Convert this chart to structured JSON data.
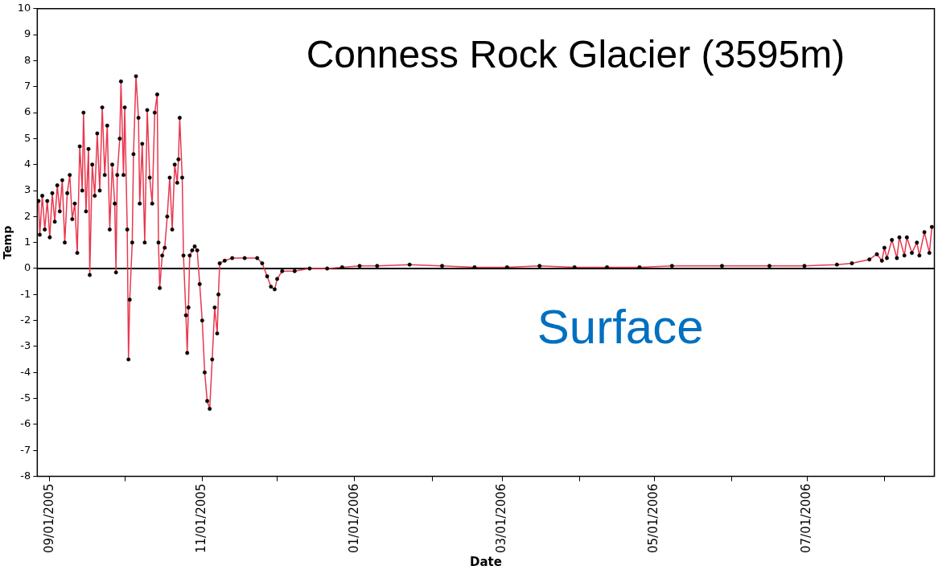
{
  "chart_data": {
    "type": "line",
    "title": "Conness Rock Glacier (3595m)",
    "xlabel": "Date",
    "ylabel": "Temp",
    "annotations": [
      "Surface"
    ],
    "x": [
      "2005-08-27T12:00",
      "2005-08-28",
      "2005-08-29",
      "2005-08-30",
      "2005-08-31",
      "2005-09-01",
      "2005-09-02",
      "2005-09-03",
      "2005-09-04",
      "2005-09-05",
      "2005-09-06",
      "2005-09-07",
      "2005-09-08",
      "2005-09-09",
      "2005-09-10",
      "2005-09-11",
      "2005-09-12",
      "2005-09-13",
      "2005-09-14",
      "2005-09-14T12:00",
      "2005-09-15T12:00",
      "2005-09-16T12:00",
      "2005-09-17",
      "2005-09-18",
      "2005-09-19",
      "2005-09-20",
      "2005-09-21",
      "2005-09-22",
      "2005-09-23",
      "2005-09-24",
      "2005-09-25",
      "2005-09-26",
      "2005-09-27",
      "2005-09-27T12:00",
      "2005-09-28",
      "2005-09-29",
      "2005-09-29T12:00",
      "2005-09-30T12:00",
      "2005-10-01",
      "2005-10-02",
      "2005-10-02T12:00",
      "2005-10-03",
      "2005-10-04",
      "2005-10-04T12:00",
      "2005-10-05T12:00",
      "2005-10-06T12:00",
      "2005-10-07",
      "2005-10-08",
      "2005-10-09",
      "2005-10-10",
      "2005-10-11",
      "2005-10-12",
      "2005-10-13",
      "2005-10-14",
      "2005-10-14T12:00",
      "2005-10-15",
      "2005-10-16",
      "2005-10-17",
      "2005-10-18",
      "2005-10-19",
      "2005-10-20",
      "2005-10-21",
      "2005-10-22",
      "2005-10-22T12:00",
      "2005-10-23",
      "2005-10-24",
      "2005-10-24T12:00",
      "2005-10-25T12:00",
      "2005-10-26",
      "2005-10-26T12:00",
      "2005-10-27",
      "2005-10-28",
      "2005-10-29",
      "2005-10-30",
      "2005-10-31",
      "2005-11-01",
      "2005-11-02",
      "2005-11-03",
      "2005-11-04",
      "2005-11-05",
      "2005-11-06",
      "2005-11-07",
      "2005-11-07T12:00",
      "2005-11-08",
      "2005-11-10",
      "2005-11-13",
      "2005-11-18",
      "2005-11-23",
      "2005-11-25",
      "2005-11-27",
      "2005-11-28T12:00",
      "2005-11-30",
      "2005-12-01",
      "2005-12-03",
      "2005-12-08",
      "2005-12-14",
      "2005-12-21",
      "2005-12-27",
      "2006-01-03",
      "2006-01-10",
      "2006-01-23",
      "2006-02-05",
      "2006-02-18",
      "2006-03-03",
      "2006-03-16",
      "2006-03-30",
      "2006-04-12",
      "2006-04-25",
      "2006-05-08",
      "2006-05-28",
      "2006-06-16",
      "2006-06-30",
      "2006-07-13",
      "2006-07-19",
      "2006-07-26",
      "2006-07-29",
      "2006-07-31",
      "2006-08-01",
      "2006-08-02",
      "2006-08-04",
      "2006-08-06",
      "2006-08-07",
      "2006-08-09",
      "2006-08-10",
      "2006-08-12",
      "2006-08-14",
      "2006-08-15",
      "2006-08-17",
      "2006-08-19",
      "2006-08-20"
    ],
    "series": [
      {
        "color": "#e8384f",
        "values": [
          2.6,
          1.3,
          2.8,
          1.5,
          2.6,
          1.2,
          2.9,
          1.8,
          3.2,
          2.2,
          3.4,
          1.0,
          2.9,
          3.6,
          1.9,
          2.5,
          0.6,
          4.7,
          3.0,
          6.0,
          2.2,
          4.6,
          -0.25,
          4.0,
          2.8,
          5.2,
          3.0,
          6.2,
          3.6,
          5.5,
          1.5,
          4.0,
          2.5,
          -0.15,
          3.6,
          5.0,
          7.2,
          3.6,
          6.2,
          1.5,
          -3.5,
          -1.2,
          1.0,
          4.4,
          7.4,
          5.8,
          2.5,
          4.8,
          1.0,
          6.1,
          3.5,
          2.5,
          6.0,
          6.7,
          1.0,
          -0.75,
          0.5,
          0.8,
          2.0,
          3.5,
          1.5,
          4.0,
          3.3,
          4.2,
          5.8,
          3.5,
          0.5,
          -1.8,
          -3.25,
          -1.5,
          0.5,
          0.7,
          0.85,
          0.7,
          -0.6,
          -2.0,
          -4.0,
          -5.1,
          -5.4,
          -3.5,
          -1.5,
          -2.5,
          -1.0,
          0.2,
          0.3,
          0.4,
          0.4,
          0.4,
          0.2,
          -0.3,
          -0.7,
          -0.8,
          -0.4,
          -0.1,
          -0.1,
          0.0,
          0.0,
          0.05,
          0.1,
          0.1,
          0.15,
          0.1,
          0.05,
          0.05,
          0.1,
          0.05,
          0.05,
          0.05,
          0.1,
          0.1,
          0.1,
          0.1,
          0.15,
          0.2,
          0.35,
          0.55,
          0.3,
          0.8,
          0.4,
          1.1,
          0.4,
          1.2,
          0.5,
          1.2,
          0.6,
          1.0,
          0.5,
          1.4,
          0.6,
          1.6
        ]
      }
    ],
    "xlim": [
      "2005-08-27",
      "2006-08-21"
    ],
    "xticks": [
      {
        "value": "2005-09-01",
        "label": "09/01/2005"
      },
      {
        "value": "2005-10-01",
        "label": null
      },
      {
        "value": "2005-11-01",
        "label": "11/01/2005"
      },
      {
        "value": "2005-12-01",
        "label": null
      },
      {
        "value": "2006-01-01",
        "label": "01/01/2006"
      },
      {
        "value": "2006-02-01",
        "label": null
      },
      {
        "value": "2006-03-01",
        "label": "03/01/2006"
      },
      {
        "value": "2006-04-01",
        "label": null
      },
      {
        "value": "2006-05-01",
        "label": "05/01/2006"
      },
      {
        "value": "2006-06-01",
        "label": null
      },
      {
        "value": "2006-07-01",
        "label": "07/01/2006"
      },
      {
        "value": "2006-08-01",
        "label": null
      }
    ],
    "ylim": [
      -8,
      10
    ],
    "yticks": [
      -8,
      -7,
      -6,
      -5,
      -4,
      -3,
      -2,
      -1,
      0,
      1,
      2,
      3,
      4,
      5,
      6,
      7,
      8,
      9,
      10
    ],
    "ref_lines": [
      {
        "axis": "y",
        "value": 0,
        "color": "#000000"
      }
    ],
    "marker": "circle",
    "line_style": "solid",
    "grid": false,
    "legend": false
  }
}
